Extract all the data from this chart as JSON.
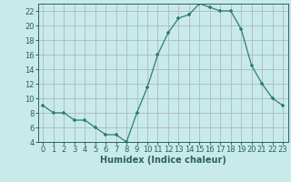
{
  "x": [
    0,
    1,
    2,
    3,
    4,
    5,
    6,
    7,
    8,
    9,
    10,
    11,
    12,
    13,
    14,
    15,
    16,
    17,
    18,
    19,
    20,
    21,
    22,
    23
  ],
  "y": [
    9,
    8,
    8,
    7,
    7,
    6,
    5,
    5,
    4,
    8,
    11.5,
    16,
    19,
    21,
    21.5,
    23,
    22.5,
    22,
    22,
    19.5,
    14.5,
    12,
    10,
    9
  ],
  "line_color": "#2d7d72",
  "marker_color": "#2d7d72",
  "bg_color": "#c8eaea",
  "grid_color": "#b0b8b8",
  "xlabel": "Humidex (Indice chaleur)",
  "ylim": [
    4,
    23
  ],
  "xlim": [
    -0.5,
    23.5
  ],
  "yticks": [
    4,
    6,
    8,
    10,
    12,
    14,
    16,
    18,
    20,
    22
  ],
  "xticks": [
    0,
    1,
    2,
    3,
    4,
    5,
    6,
    7,
    8,
    9,
    10,
    11,
    12,
    13,
    14,
    15,
    16,
    17,
    18,
    19,
    20,
    21,
    22,
    23
  ],
  "font_color": "#2d6060",
  "xlabel_fontsize": 7.0,
  "tick_fontsize": 6.0
}
